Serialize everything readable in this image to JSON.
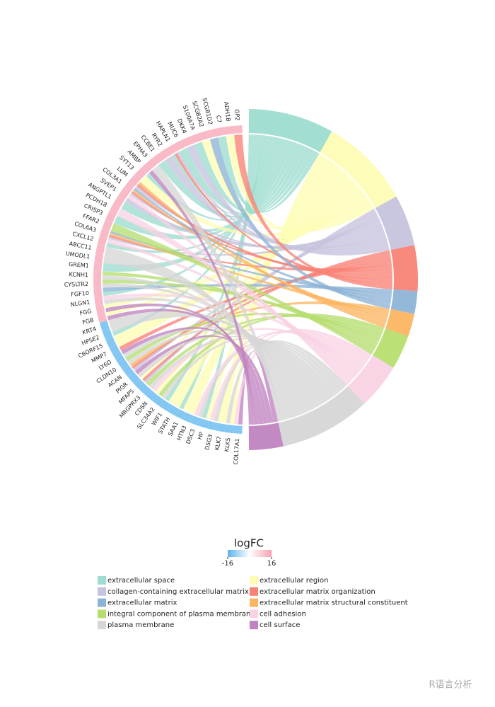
{
  "chart_data": {
    "type": "chord",
    "terms": [
      {
        "name": "extracellular space",
        "color": "#9edcd0"
      },
      {
        "name": "extracellular region",
        "color": "#fdfcb4"
      },
      {
        "name": "collagen-containing extracellular matrix",
        "color": "#c6c3de"
      },
      {
        "name": "extracellular matrix organization",
        "color": "#f98276"
      },
      {
        "name": "extracellular matrix",
        "color": "#8db4d6"
      },
      {
        "name": "extracellular matrix structural constituent",
        "color": "#fbb561"
      },
      {
        "name": "integral component of plasma membrane",
        "color": "#b6de6f"
      },
      {
        "name": "cell adhesion",
        "color": "#f9d2e4"
      },
      {
        "name": "plasma membrane",
        "color": "#d6d6d6"
      },
      {
        "name": "cell surface",
        "color": "#c083c0"
      }
    ],
    "genes": [
      {
        "name": "COL17A1",
        "logfc": -12,
        "terms": [
          9,
          7
        ]
      },
      {
        "name": "KLK5",
        "logfc": -12,
        "terms": [
          1,
          8
        ]
      },
      {
        "name": "KLK7",
        "logfc": -12,
        "terms": [
          1
        ]
      },
      {
        "name": "DSG3",
        "logfc": -12,
        "terms": [
          8,
          7
        ]
      },
      {
        "name": "HP",
        "logfc": -12,
        "terms": [
          1,
          0
        ]
      },
      {
        "name": "DSC3",
        "logfc": -12,
        "terms": [
          8,
          7
        ]
      },
      {
        "name": "HTN3",
        "logfc": -12,
        "terms": [
          1
        ]
      },
      {
        "name": "SAA1",
        "logfc": -12,
        "terms": [
          1,
          0
        ]
      },
      {
        "name": "STATH",
        "logfc": -12,
        "terms": [
          1
        ]
      },
      {
        "name": "WIF1",
        "logfc": -12,
        "terms": [
          1,
          0
        ]
      },
      {
        "name": "SLC34A2",
        "logfc": -12,
        "terms": [
          8,
          6
        ]
      },
      {
        "name": "CDSN",
        "logfc": -12,
        "terms": [
          1,
          7
        ]
      },
      {
        "name": "MRGPRX3",
        "logfc": -12,
        "terms": [
          8,
          6
        ]
      },
      {
        "name": "MFAP5",
        "logfc": -12,
        "terms": [
          2,
          3,
          1
        ]
      },
      {
        "name": "PIGR",
        "logfc": -12,
        "terms": [
          8,
          9
        ]
      },
      {
        "name": "ACAN",
        "logfc": -12,
        "terms": [
          2,
          3,
          5
        ]
      },
      {
        "name": "CLDN10",
        "logfc": -12,
        "terms": [
          8,
          6
        ]
      },
      {
        "name": "LY6D",
        "logfc": -12,
        "terms": [
          8,
          9
        ]
      },
      {
        "name": "MMP7",
        "logfc": -12,
        "terms": [
          3,
          1
        ]
      },
      {
        "name": "C6ORF15",
        "logfc": -12,
        "terms": [
          1
        ]
      },
      {
        "name": "HPSE2",
        "logfc": -12,
        "terms": [
          0,
          8
        ]
      },
      {
        "name": "KRT4",
        "logfc": -12,
        "terms": [
          8
        ]
      },
      {
        "name": "FGB",
        "logfc": 12,
        "terms": [
          9,
          1
        ]
      },
      {
        "name": "FGG",
        "logfc": 12,
        "terms": [
          9,
          1
        ]
      },
      {
        "name": "NLGN1",
        "logfc": 12,
        "terms": [
          8,
          7
        ]
      },
      {
        "name": "FGF10",
        "logfc": 12,
        "terms": [
          0,
          4
        ]
      },
      {
        "name": "CYSLTR2",
        "logfc": 12,
        "terms": [
          8,
          6
        ]
      },
      {
        "name": "KCNH1",
        "logfc": 12,
        "terms": [
          8,
          6
        ]
      },
      {
        "name": "GREM1",
        "logfc": 12,
        "terms": [
          0
        ]
      },
      {
        "name": "UMODL1",
        "logfc": 12,
        "terms": [
          8
        ]
      },
      {
        "name": "ABCC11",
        "logfc": 12,
        "terms": [
          8
        ]
      },
      {
        "name": "CXCL12",
        "logfc": 12,
        "terms": [
          0,
          7
        ]
      },
      {
        "name": "COL6A3",
        "logfc": 12,
        "terms": [
          2,
          3,
          5,
          4
        ]
      },
      {
        "name": "FFAR2",
        "logfc": 12,
        "terms": [
          6
        ]
      },
      {
        "name": "CRISP3",
        "logfc": 12,
        "terms": [
          0
        ]
      },
      {
        "name": "PCDH18",
        "logfc": 12,
        "terms": [
          7
        ]
      },
      {
        "name": "ANGPTL1",
        "logfc": 12,
        "terms": [
          0
        ]
      },
      {
        "name": "SVEP1",
        "logfc": 12,
        "terms": [
          2,
          7
        ]
      },
      {
        "name": "COL3A1",
        "logfc": 12,
        "terms": [
          2,
          3,
          5,
          4
        ]
      },
      {
        "name": "LUM",
        "logfc": 12,
        "terms": [
          2,
          3,
          5
        ]
      },
      {
        "name": "SYT13",
        "logfc": 12,
        "terms": [
          1
        ]
      },
      {
        "name": "AMBP",
        "logfc": 12,
        "terms": [
          0,
          9
        ]
      },
      {
        "name": "EPHA3",
        "logfc": 12,
        "terms": [
          8
        ]
      },
      {
        "name": "CCBE1",
        "logfc": 12,
        "terms": [
          0
        ]
      },
      {
        "name": "RYR2",
        "logfc": 12,
        "terms": [
          2
        ]
      },
      {
        "name": "HAPLN1",
        "logfc": 12,
        "terms": [
          0,
          3,
          2
        ]
      },
      {
        "name": "MUC6",
        "logfc": 12,
        "terms": [
          0
        ]
      },
      {
        "name": "DKK4",
        "logfc": 12,
        "terms": [
          2
        ]
      },
      {
        "name": "S100A7A",
        "logfc": 12,
        "terms": [
          0
        ]
      },
      {
        "name": "SCGB2A2",
        "logfc": 12,
        "terms": [
          1
        ]
      },
      {
        "name": "SCGB1D2",
        "logfc": 12,
        "terms": [
          4
        ]
      },
      {
        "name": "C7",
        "logfc": 12,
        "terms": [
          0
        ]
      },
      {
        "name": "ADH1B",
        "logfc": 12,
        "terms": [
          1
        ]
      },
      {
        "name": "GP2",
        "logfc": 12,
        "terms": [
          3
        ]
      }
    ],
    "colorbar": {
      "title": "logFC",
      "lim": [
        -16,
        16
      ],
      "ticks": [
        -16,
        16
      ],
      "low": "#5ab4ee",
      "mid": "#ffffff",
      "high": "#f7a1b3"
    }
  },
  "watermark": "R语言分析"
}
